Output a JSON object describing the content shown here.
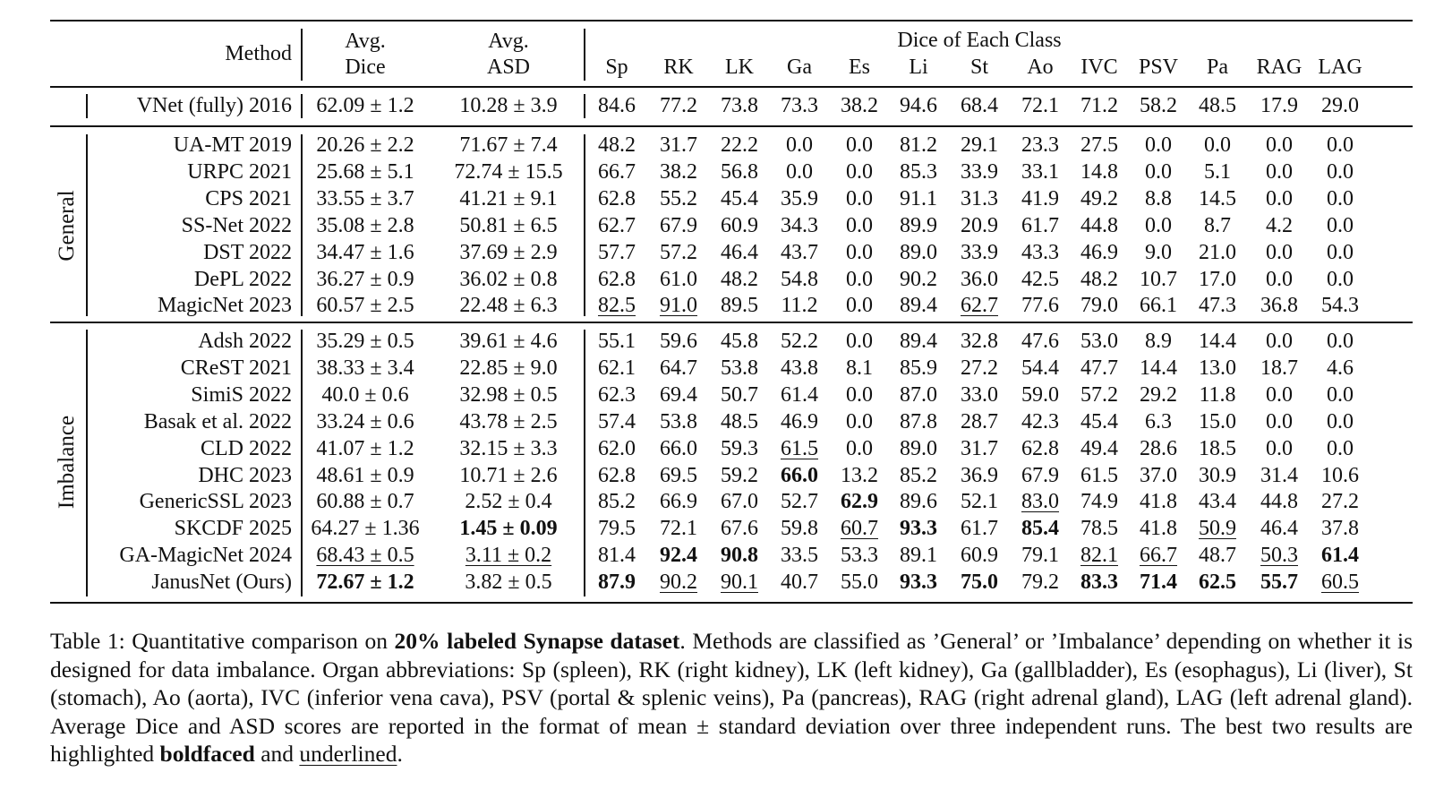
{
  "table": {
    "headers": {
      "method": "Method",
      "avg_dice": [
        "Avg.",
        "Dice"
      ],
      "avg_asd": [
        "Avg.",
        "ASD"
      ],
      "dice_group": "Dice of Each Class",
      "classes": [
        "Sp",
        "RK",
        "LK",
        "Ga",
        "Es",
        "Li",
        "St",
        "Ao",
        "IVC",
        "PSV",
        "Pa",
        "RAG",
        "LAG"
      ]
    },
    "groups": [
      {
        "label": "",
        "rows": [
          {
            "method": "VNet (fully) 2016",
            "dice": "62.09 ± 1.2",
            "asd": "10.28 ± 3.9",
            "values": [
              "84.6",
              "77.2",
              "73.8",
              "73.3",
              "38.2",
              "94.6",
              "68.4",
              "72.1",
              "71.2",
              "58.2",
              "48.5",
              "17.9",
              "29.0"
            ]
          }
        ]
      },
      {
        "label": "General",
        "rows": [
          {
            "method": "UA-MT 2019",
            "dice": "20.26 ± 2.2",
            "asd": "71.67 ± 7.4",
            "values": [
              "48.2",
              "31.7",
              "22.2",
              "0.0",
              "0.0",
              "81.2",
              "29.1",
              "23.3",
              "27.5",
              "0.0",
              "0.0",
              "0.0",
              "0.0"
            ]
          },
          {
            "method": "URPC 2021",
            "dice": "25.68 ± 5.1",
            "asd": "72.74 ± 15.5",
            "values": [
              "66.7",
              "38.2",
              "56.8",
              "0.0",
              "0.0",
              "85.3",
              "33.9",
              "33.1",
              "14.8",
              "0.0",
              "5.1",
              "0.0",
              "0.0"
            ]
          },
          {
            "method": "CPS 2021",
            "dice": "33.55 ± 3.7",
            "asd": "41.21 ± 9.1",
            "values": [
              "62.8",
              "55.2",
              "45.4",
              "35.9",
              "0.0",
              "91.1",
              "31.3",
              "41.9",
              "49.2",
              "8.8",
              "14.5",
              "0.0",
              "0.0"
            ]
          },
          {
            "method": "SS-Net 2022",
            "dice": "35.08 ± 2.8",
            "asd": "50.81 ± 6.5",
            "values": [
              "62.7",
              "67.9",
              "60.9",
              "34.3",
              "0.0",
              "89.9",
              "20.9",
              "61.7",
              "44.8",
              "0.0",
              "8.7",
              "4.2",
              "0.0"
            ]
          },
          {
            "method": "DST 2022",
            "dice": "34.47 ± 1.6",
            "asd": "37.69 ± 2.9",
            "values": [
              "57.7",
              "57.2",
              "46.4",
              "43.7",
              "0.0",
              "89.0",
              "33.9",
              "43.3",
              "46.9",
              "9.0",
              "21.0",
              "0.0",
              "0.0"
            ]
          },
          {
            "method": "DePL 2022",
            "dice": "36.27 ± 0.9",
            "asd": "36.02 ± 0.8",
            "values": [
              "62.8",
              "61.0",
              "48.2",
              "54.8",
              "0.0",
              "90.2",
              "36.0",
              "42.5",
              "48.2",
              "10.7",
              "17.0",
              "0.0",
              "0.0"
            ]
          },
          {
            "method": "MagicNet 2023",
            "dice": "60.57 ± 2.5",
            "asd": "22.48 ± 6.3",
            "values": [
              "82.5",
              "91.0",
              "89.5",
              "11.2",
              "0.0",
              "89.4",
              "62.7",
              "77.6",
              "79.0",
              "66.1",
              "47.3",
              "36.8",
              "54.3"
            ],
            "underline": [
              0,
              1,
              6
            ]
          }
        ]
      },
      {
        "label": "Imbalance",
        "rows": [
          {
            "method": "Adsh 2022",
            "dice": "35.29 ± 0.5",
            "asd": "39.61 ± 4.6",
            "values": [
              "55.1",
              "59.6",
              "45.8",
              "52.2",
              "0.0",
              "89.4",
              "32.8",
              "47.6",
              "53.0",
              "8.9",
              "14.4",
              "0.0",
              "0.0"
            ]
          },
          {
            "method": "CReST 2021",
            "dice": "38.33 ± 3.4",
            "asd": "22.85 ± 9.0",
            "values": [
              "62.1",
              "64.7",
              "53.8",
              "43.8",
              "8.1",
              "85.9",
              "27.2",
              "54.4",
              "47.7",
              "14.4",
              "13.0",
              "18.7",
              "4.6"
            ]
          },
          {
            "method": "SimiS 2022",
            "dice": "40.0 ± 0.6",
            "asd": "32.98 ± 0.5",
            "values": [
              "62.3",
              "69.4",
              "50.7",
              "61.4",
              "0.0",
              "87.0",
              "33.0",
              "59.0",
              "57.2",
              "29.2",
              "11.8",
              "0.0",
              "0.0"
            ]
          },
          {
            "method": "Basak et al. 2022",
            "dice": "33.24 ± 0.6",
            "asd": "43.78 ± 2.5",
            "values": [
              "57.4",
              "53.8",
              "48.5",
              "46.9",
              "0.0",
              "87.8",
              "28.7",
              "42.3",
              "45.4",
              "6.3",
              "15.0",
              "0.0",
              "0.0"
            ]
          },
          {
            "method": "CLD 2022",
            "dice": "41.07 ± 1.2",
            "asd": "32.15 ± 3.3",
            "values": [
              "62.0",
              "66.0",
              "59.3",
              "61.5",
              "0.0",
              "89.0",
              "31.7",
              "62.8",
              "49.4",
              "28.6",
              "18.5",
              "0.0",
              "0.0"
            ],
            "underline": [
              3
            ]
          },
          {
            "method": "DHC 2023",
            "dice": "48.61 ± 0.9",
            "asd": "10.71 ± 2.6",
            "values": [
              "62.8",
              "69.5",
              "59.2",
              "66.0",
              "13.2",
              "85.2",
              "36.9",
              "67.9",
              "61.5",
              "37.0",
              "30.9",
              "31.4",
              "10.6"
            ],
            "bold": [
              3
            ]
          },
          {
            "method": "GenericSSL 2023",
            "dice": "60.88 ± 0.7",
            "asd": "2.52 ± 0.4",
            "values": [
              "85.2",
              "66.9",
              "67.0",
              "52.7",
              "62.9",
              "89.6",
              "52.1",
              "83.0",
              "74.9",
              "41.8",
              "43.4",
              "44.8",
              "27.2"
            ],
            "bold": [
              4
            ],
            "underline": [
              7
            ]
          },
          {
            "method": "SKCDF 2025",
            "dice": "64.27 ± 1.36",
            "asd": "1.45 ± 0.09",
            "asd_bold": true,
            "values": [
              "79.5",
              "72.1",
              "67.6",
              "59.8",
              "60.7",
              "93.3",
              "61.7",
              "85.4",
              "78.5",
              "41.8",
              "50.9",
              "46.4",
              "37.8"
            ],
            "bold": [
              5,
              7
            ],
            "underline": [
              4,
              10
            ]
          },
          {
            "method": "GA-MagicNet 2024",
            "dice": "68.43 ± 0.5",
            "dice_underline": true,
            "asd": "3.11 ± 0.2",
            "asd_underline": true,
            "values": [
              "81.4",
              "92.4",
              "90.8",
              "33.5",
              "53.3",
              "89.1",
              "60.9",
              "79.1",
              "82.1",
              "66.7",
              "48.7",
              "50.3",
              "61.4"
            ],
            "bold": [
              1,
              2,
              12
            ],
            "underline": [
              8,
              9,
              11
            ]
          },
          {
            "method": "JanusNet (Ours)",
            "dice": "72.67 ± 1.2",
            "dice_bold": true,
            "asd": "3.82 ± 0.5",
            "values": [
              "87.9",
              "90.2",
              "90.1",
              "40.7",
              "55.0",
              "93.3",
              "75.0",
              "79.2",
              "83.3",
              "71.4",
              "62.5",
              "55.7",
              "60.5"
            ],
            "bold": [
              0,
              5,
              6,
              8,
              9,
              10,
              11
            ],
            "underline": [
              1,
              2,
              12
            ]
          }
        ]
      }
    ]
  },
  "caption": {
    "t1": "Table 1: Quantitative comparison on ",
    "b1": "20% labeled Synapse dataset",
    "t2": ". Methods are classified as ’General’ or ’Imbalance’ depending on whether it is designed for data imbalance. Organ abbreviations: Sp (spleen), RK (right kidney), LK (left kidney), Ga (gallbladder), Es (esophagus), Li (liver), St (stomach), Ao (aorta), IVC (inferior vena cava), PSV (portal & splenic veins), Pa (pancreas), RAG (right adrenal gland), LAG (left adrenal gland). Average Dice and ASD scores are reported in the format of mean ± standard deviation over three independent runs. The best two results are highlighted ",
    "b2": "boldfaced",
    "t3": " and ",
    "u1": "underlined",
    "t4": "."
  }
}
